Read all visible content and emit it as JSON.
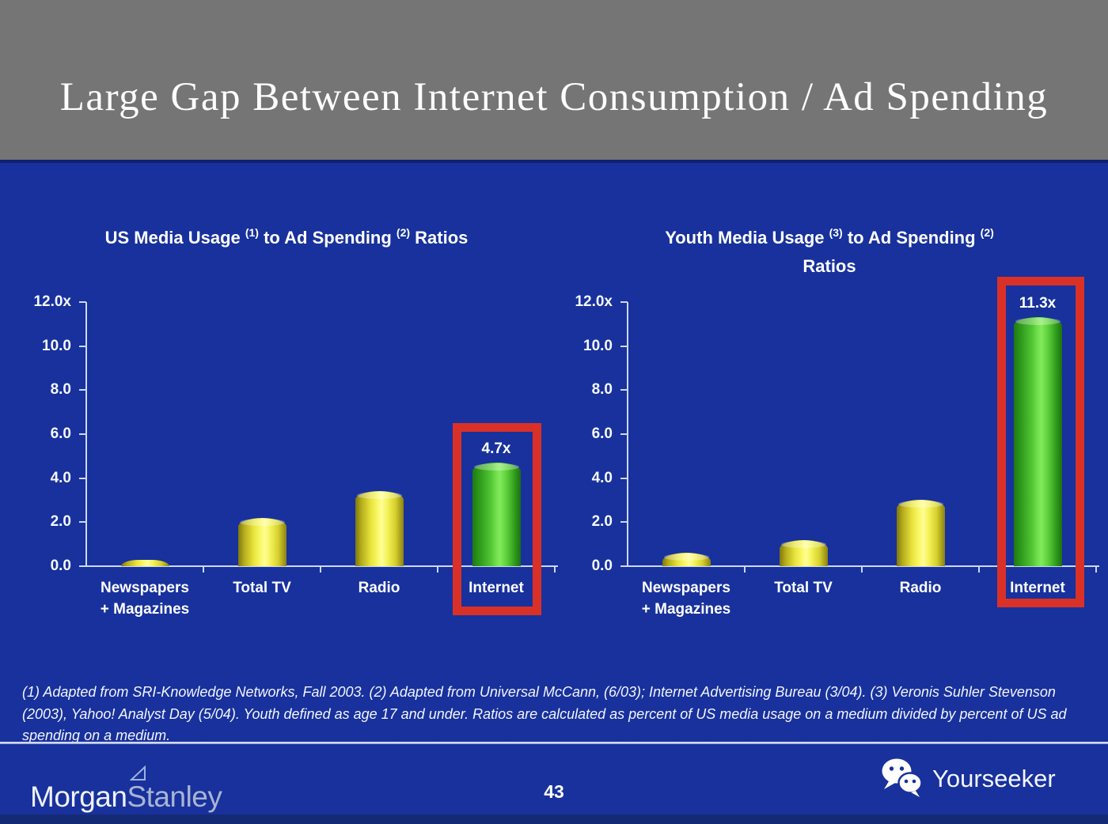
{
  "slide": {
    "title": "Large Gap Between Internet Consumption / Ad Spending",
    "page_number": "43",
    "footnote": "(1) Adapted from SRI-Knowledge Networks, Fall 2003.  (2) Adapted from Universal McCann, (6/03); Internet Advertising Bureau (3/04). (3) Veronis Suhler Stevenson (2003), Yahoo! Analyst Day (5/04).  Youth defined as age 17 and under.  Ratios are calculated as percent of US media usage on a medium divided by percent of US ad spending on a medium."
  },
  "branding": {
    "logo_morgan": "Morgan",
    "logo_stanley": "Stanley",
    "logo_right": "Yourseeker",
    "icons": [
      "morgan-stanley-flag-icon",
      "wechat-icon"
    ]
  },
  "colors": {
    "background_blue": "#18319c",
    "header_gray": "#757575",
    "bar_yellow": "#f5f35a",
    "bar_green": "#62d53c",
    "highlight_red": "#d93128",
    "axis_light": "#ccd7f1",
    "text_white": "#ffffff"
  },
  "chart_data": [
    {
      "type": "bar",
      "title": "US Media Usage (1) to Ad Spending (2) Ratios",
      "title_segments": [
        {
          "text": "US Media Usage "
        },
        {
          "sup": "(1)"
        },
        {
          "text": " to Ad Spending "
        },
        {
          "sup": "(2)"
        },
        {
          "text": " Ratios"
        }
      ],
      "categories": [
        "Newspapers\n+ Magazines",
        "Total TV",
        "Radio",
        "Internet"
      ],
      "values": [
        0.3,
        2.2,
        3.4,
        4.7
      ],
      "bar_colors": [
        "yellow",
        "yellow",
        "yellow",
        "green"
      ],
      "value_labels": [
        "",
        "",
        "",
        "4.7x"
      ],
      "highlight_index": 3,
      "y_ticks": [
        "12.0x",
        "10.0",
        "8.0",
        "6.0",
        "4.0",
        "2.0",
        "0.0"
      ],
      "ylim": [
        0,
        12
      ],
      "xlabel": "",
      "ylabel": "",
      "grid": false,
      "legend": "none"
    },
    {
      "type": "bar",
      "title": "Youth Media Usage (3) to Ad Spending (2) Ratios",
      "title_segments": [
        {
          "text": "Youth Media Usage "
        },
        {
          "sup": "(3)"
        },
        {
          "text": " to Ad Spending "
        },
        {
          "sup": "(2)"
        },
        {
          "break": true
        },
        {
          "text": "Ratios"
        }
      ],
      "categories": [
        "Newspapers\n+ Magazines",
        "Total TV",
        "Radio",
        "Internet"
      ],
      "values": [
        0.6,
        1.2,
        3.0,
        11.3
      ],
      "bar_colors": [
        "yellow",
        "yellow",
        "yellow",
        "green"
      ],
      "value_labels": [
        "",
        "",
        "",
        "11.3x"
      ],
      "highlight_index": 3,
      "y_ticks": [
        "12.0x",
        "10.0",
        "8.0",
        "6.0",
        "4.0",
        "2.0",
        "0.0"
      ],
      "ylim": [
        0,
        12
      ],
      "xlabel": "",
      "ylabel": "",
      "grid": false,
      "legend": "none"
    }
  ]
}
